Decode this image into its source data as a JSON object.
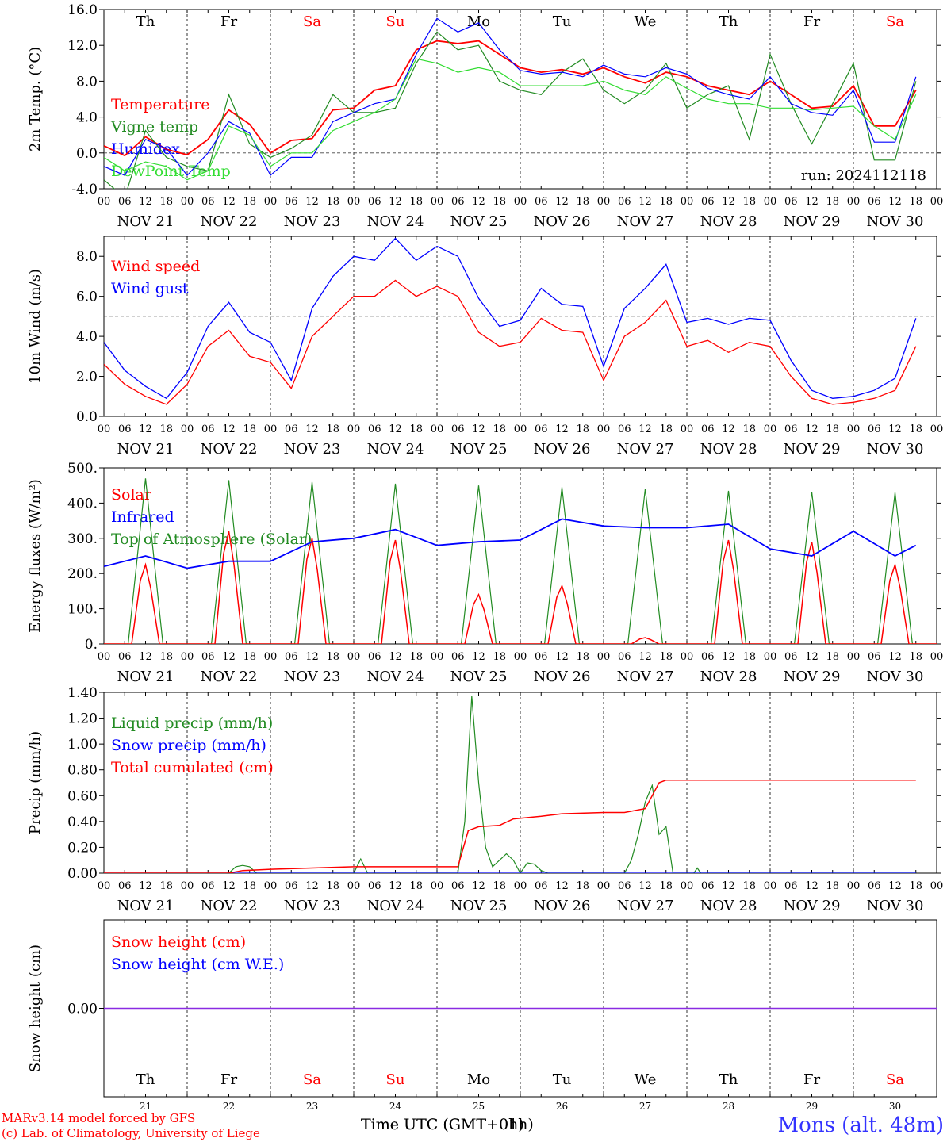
{
  "colors": {
    "red": "#ff0000",
    "green": "#228b22",
    "blue": "#0000ff",
    "lightgreen": "#33dd33",
    "purple": "#8a2be2",
    "weekend": "#ff0000",
    "axis": "#000000",
    "location": "#3333ff"
  },
  "days": [
    "Th",
    "Fr",
    "Sa",
    "Su",
    "Mo",
    "Tu",
    "We",
    "Th",
    "Fr",
    "Sa"
  ],
  "weekend_flags": [
    false,
    false,
    true,
    true,
    false,
    false,
    false,
    false,
    false,
    true
  ],
  "dates": [
    "NOV 21",
    "NOV 22",
    "NOV 23",
    "NOV 24",
    "NOV 25",
    "NOV 26",
    "NOV 27",
    "NOV 28",
    "NOV 29",
    "NOV 30"
  ],
  "day_numbers": [
    "21",
    "22",
    "23",
    "24",
    "25",
    "26",
    "27",
    "28",
    "29",
    "30"
  ],
  "hour_ticks": [
    "00",
    "06",
    "12",
    "18"
  ],
  "hour_end": "00",
  "run_label": "run: 2024112118",
  "footer": {
    "credit1": "MARv3.14 model forced by GFS",
    "credit2": "(c) Lab. of Climatology, University of Liege",
    "xlabel_a": "Time UTC (GMT+0h)",
    "xlabel_b": "Time UTC (GMT+01h)",
    "location": "Mons (alt. 48m)"
  },
  "chart_data": [
    {
      "type": "line",
      "ylabel": "2m Temp. (°C)",
      "ylim": [
        -4.0,
        16.0
      ],
      "yticks": [
        "-4.0",
        "0.0",
        "4.0",
        "8.0",
        "12.0",
        "16.0"
      ],
      "reference_line": 0,
      "legend": [
        "Temperature",
        "Vigne temp",
        "Humidex",
        "DewPoint Temp"
      ],
      "x_hours": [
        0,
        6,
        12,
        18,
        24,
        30,
        36,
        42,
        48,
        54,
        60,
        66,
        72,
        78,
        84,
        90,
        96,
        102,
        108,
        114,
        120,
        126,
        132,
        138,
        144,
        150,
        156,
        162,
        168,
        174,
        180,
        186,
        192,
        198,
        204,
        210,
        216,
        222,
        228,
        234
      ],
      "series": [
        {
          "name": "Temperature",
          "values": [
            0.8,
            -0.3,
            1.8,
            0.4,
            -0.2,
            1.5,
            4.8,
            3.2,
            0,
            1.4,
            1.6,
            4.8,
            5.0,
            7.0,
            7.5,
            11.5,
            12.5,
            12.2,
            12.5,
            11.0,
            9.5,
            9.0,
            9.3,
            8.8,
            9.5,
            8.5,
            7.8,
            9.0,
            8.5,
            7.5,
            7.0,
            6.5,
            8.0,
            6.5,
            5.0,
            5.2,
            7.5,
            3.0,
            3.0,
            7.0
          ]
        },
        {
          "name": "Vigne temp",
          "values": [
            -3,
            -5,
            2.5,
            -0.5,
            -1.5,
            -2,
            6.5,
            1,
            -0.5,
            0.5,
            2,
            6.5,
            4.5,
            4.5,
            5,
            10,
            13.5,
            11.5,
            12,
            8,
            7,
            6.5,
            9,
            10.5,
            7,
            5.5,
            7,
            10,
            5,
            6.5,
            7.5,
            1.5,
            11,
            5.5,
            1,
            5.5,
            10,
            -0.8,
            -0.8,
            8
          ]
        },
        {
          "name": "Humidex",
          "values": [
            -1.5,
            -2.5,
            1.5,
            0.5,
            -2.5,
            0,
            3.5,
            2.2,
            -2.5,
            -0.5,
            -0.5,
            3.5,
            4.5,
            5.5,
            6,
            11,
            15,
            13.5,
            14.5,
            11.5,
            9.2,
            8.8,
            9.0,
            8.5,
            9.8,
            8.8,
            8.5,
            9.5,
            8.8,
            7.2,
            6.5,
            6.0,
            8.5,
            5.5,
            4.5,
            4.2,
            7.0,
            1.2,
            1.2,
            8.5
          ]
        },
        {
          "name": "DewPoint Temp",
          "values": [
            -0.5,
            -2,
            -1,
            -1.5,
            -3,
            -2,
            3,
            2,
            -1.5,
            0,
            0,
            2.5,
            3.5,
            4.5,
            6,
            10.5,
            10,
            9,
            9.5,
            9,
            7.5,
            7.5,
            7.5,
            7.5,
            8,
            7,
            6.5,
            8.5,
            7.2,
            6,
            5.5,
            5.5,
            5,
            5,
            4.8,
            5.0,
            5.2,
            3.0,
            1.5,
            6.5
          ]
        }
      ]
    },
    {
      "type": "line",
      "ylabel": "10m Wind (m/s)",
      "ylim": [
        0.0,
        9.0
      ],
      "yticks": [
        "0.0",
        "2.0",
        "4.0",
        "6.0",
        "8.0"
      ],
      "reference_line": 5,
      "legend": [
        "Wind speed",
        "Wind gust"
      ],
      "x_hours": [
        0,
        6,
        12,
        18,
        24,
        30,
        36,
        42,
        48,
        54,
        60,
        66,
        72,
        78,
        84,
        90,
        96,
        102,
        108,
        114,
        120,
        126,
        132,
        138,
        144,
        150,
        156,
        162,
        168,
        174,
        180,
        186,
        192,
        198,
        204,
        210,
        216,
        222,
        228,
        234
      ],
      "series": [
        {
          "name": "Wind speed",
          "values": [
            2.6,
            1.6,
            1.0,
            0.6,
            1.6,
            3.5,
            4.3,
            3.0,
            2.7,
            1.4,
            4.0,
            5.0,
            6.0,
            6.0,
            6.8,
            6.0,
            6.5,
            6.0,
            4.2,
            3.5,
            3.7,
            4.9,
            4.3,
            4.2,
            1.8,
            4.0,
            4.7,
            5.8,
            3.5,
            3.8,
            3.2,
            3.7,
            3.5,
            2.0,
            0.9,
            0.6,
            0.7,
            0.9,
            1.3,
            3.5
          ]
        },
        {
          "name": "Wind gust",
          "values": [
            3.7,
            2.3,
            1.5,
            0.9,
            2.2,
            4.5,
            5.7,
            4.2,
            3.7,
            1.8,
            5.4,
            7.0,
            8.0,
            7.8,
            8.9,
            7.8,
            8.5,
            8.0,
            5.9,
            4.5,
            4.8,
            6.4,
            5.6,
            5.5,
            2.5,
            5.4,
            6.4,
            7.6,
            4.7,
            4.9,
            4.6,
            4.9,
            4.8,
            2.8,
            1.3,
            0.9,
            1.0,
            1.3,
            1.9,
            4.9
          ]
        }
      ]
    },
    {
      "type": "line",
      "ylabel": "Energy fluxes (W/m²)",
      "ylim": [
        0,
        500
      ],
      "yticks": [
        "0.",
        "100.",
        "200.",
        "300.",
        "400.",
        "500."
      ],
      "legend": [
        "Solar",
        "Infrared",
        "Top of Atmosphere (Solar)"
      ],
      "solar_peaks": [
        225,
        320,
        300,
        295,
        140,
        165,
        18,
        295,
        290,
        225
      ],
      "toa_peaks": [
        470,
        465,
        460,
        455,
        450,
        445,
        440,
        435,
        432,
        430
      ],
      "x_hours": [
        0,
        12,
        24,
        36,
        48,
        60,
        72,
        84,
        96,
        108,
        120,
        132,
        144,
        156,
        168,
        180,
        192,
        204,
        216,
        228,
        234
      ],
      "series": [
        {
          "name": "Infrared",
          "values": [
            220,
            250,
            215,
            235,
            235,
            290,
            300,
            325,
            280,
            290,
            295,
            355,
            335,
            330,
            330,
            340,
            270,
            250,
            320,
            250,
            280
          ]
        }
      ]
    },
    {
      "type": "line",
      "ylabel": "Precip (mm/h)",
      "ylim": [
        0.0,
        1.4
      ],
      "yticks": [
        "0.00",
        "0.20",
        "0.40",
        "0.60",
        "0.80",
        "1.00",
        "1.20",
        "1.40"
      ],
      "legend": [
        "Liquid precip (mm/h)",
        "Snow precip (mm/h)",
        "Total cumulated (cm)"
      ],
      "series": [
        {
          "name": "Liquid precip (mm/h)",
          "points": [
            [
              0,
              0
            ],
            [
              36,
              0
            ],
            [
              38,
              0.05
            ],
            [
              40,
              0.06
            ],
            [
              42,
              0.05
            ],
            [
              44,
              0
            ],
            [
              72,
              0
            ],
            [
              74,
              0.11
            ],
            [
              76,
              0
            ],
            [
              102,
              0
            ],
            [
              104,
              0.4
            ],
            [
              106,
              1.37
            ],
            [
              108,
              0.7
            ],
            [
              110,
              0.2
            ],
            [
              112,
              0.05
            ],
            [
              114,
              0.1
            ],
            [
              116,
              0.15
            ],
            [
              118,
              0.1
            ],
            [
              120,
              0
            ],
            [
              122,
              0.08
            ],
            [
              124,
              0.07
            ],
            [
              126,
              0.02
            ],
            [
              128,
              0
            ],
            [
              150,
              0
            ],
            [
              152,
              0.1
            ],
            [
              154,
              0.3
            ],
            [
              156,
              0.55
            ],
            [
              158,
              0.68
            ],
            [
              160,
              0.3
            ],
            [
              162,
              0.36
            ],
            [
              164,
              0
            ],
            [
              170,
              0
            ],
            [
              171,
              0.04
            ],
            [
              172,
              0
            ],
            [
              234,
              0
            ]
          ]
        },
        {
          "name": "Snow precip (mm/h)",
          "points": [
            [
              0,
              0
            ],
            [
              234,
              0
            ]
          ]
        },
        {
          "name": "Total cumulated (cm)",
          "points": [
            [
              0,
              0
            ],
            [
              36,
              0
            ],
            [
              40,
              0.02
            ],
            [
              48,
              0.03
            ],
            [
              60,
              0.04
            ],
            [
              72,
              0.05
            ],
            [
              102,
              0.05
            ],
            [
              105,
              0.33
            ],
            [
              108,
              0.36
            ],
            [
              114,
              0.37
            ],
            [
              118,
              0.42
            ],
            [
              126,
              0.44
            ],
            [
              132,
              0.46
            ],
            [
              144,
              0.47
            ],
            [
              150,
              0.47
            ],
            [
              156,
              0.5
            ],
            [
              158,
              0.6
            ],
            [
              160,
              0.7
            ],
            [
              162,
              0.72
            ],
            [
              234,
              0.72
            ]
          ]
        }
      ]
    },
    {
      "type": "line",
      "ylabel": "Snow height (cm)",
      "ylim": [
        -1,
        1
      ],
      "yticks": [
        "0.00"
      ],
      "legend": [
        "Snow height (cm)",
        "Snow height (cm W.E.)"
      ],
      "series": [
        {
          "name": "Snow height (cm)",
          "values": [
            0,
            0
          ]
        },
        {
          "name": "Snow height (cm W.E.)",
          "values": [
            0,
            0
          ]
        }
      ]
    }
  ]
}
